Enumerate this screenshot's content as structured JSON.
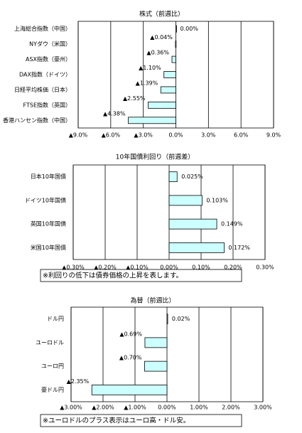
{
  "chart_data": [
    {
      "type": "bar",
      "orientation": "horizontal",
      "title": "株式（前週比）",
      "categories": [
        "上海総合指数（中国）",
        "NYダウ（米国）",
        "ASX指数（豪州）",
        "DAX指数（ドイツ）",
        "日経平均株価（日本）",
        "FTSE指数（英国）",
        "香港ハンセン指数（中国）"
      ],
      "values": [
        0.0,
        -0.04,
        -0.36,
        -1.1,
        -1.39,
        -2.55,
        -4.38
      ],
      "value_labels": [
        "0.00%",
        "▲0.04%",
        "▲0.36%",
        "▲1.10%",
        "▲1.39%",
        "▲2.55%",
        "▲4.38%"
      ],
      "color": "#ccffff",
      "negative_label_color": "#e00000",
      "grid": true,
      "xlim": [
        -9,
        9
      ],
      "xticks": [
        {
          "value": -9,
          "label": "▲9.0%"
        },
        {
          "value": -6,
          "label": "▲6.0%"
        },
        {
          "value": -3,
          "label": "▲3.0%"
        },
        {
          "value": 0,
          "label": "0.0%"
        },
        {
          "value": 3,
          "label": "3.0%"
        },
        {
          "value": 6,
          "label": "6.0%"
        },
        {
          "value": 9,
          "label": "9.0%"
        }
      ]
    },
    {
      "type": "bar",
      "orientation": "horizontal",
      "title": "10年国債利回り（前週差）",
      "categories": [
        "日本10年国債",
        "ドイツ10年国債",
        "英国10年国債",
        "米国10年国債"
      ],
      "values": [
        0.025,
        0.103,
        0.149,
        0.172
      ],
      "value_labels": [
        "0.025%",
        "0.103%",
        "0.149%",
        "0.172%"
      ],
      "color": "#ccffff",
      "negative_label_color": "#e00000",
      "grid": true,
      "xlim": [
        -0.3,
        0.3
      ],
      "xticks": [
        {
          "value": -0.3,
          "label": "▲0.30%"
        },
        {
          "value": -0.2,
          "label": "▲0.20%"
        },
        {
          "value": -0.1,
          "label": "▲0.10%"
        },
        {
          "value": 0,
          "label": "0.00%"
        },
        {
          "value": 0.1,
          "label": "0.10%"
        },
        {
          "value": 0.2,
          "label": "0.20%"
        },
        {
          "value": 0.3,
          "label": "0.30%"
        }
      ],
      "note": "※利回りの低下は債券価格の上昇を表します。"
    },
    {
      "type": "bar",
      "orientation": "horizontal",
      "title": "為替（前週比）",
      "categories": [
        "ドル円",
        "ユーロドル",
        "ユーロ円",
        "豪ドル円"
      ],
      "values": [
        0.02,
        -0.69,
        -0.7,
        -2.35
      ],
      "value_labels": [
        "0.02%",
        "▲0.69%",
        "▲0.70%",
        "▲2.35%"
      ],
      "color": "#ccffff",
      "negative_label_color": "#e00000",
      "grid": true,
      "xlim": [
        -3,
        3
      ],
      "xticks": [
        {
          "value": -3,
          "label": "▲3.00%"
        },
        {
          "value": -2,
          "label": "▲2.00%"
        },
        {
          "value": -1,
          "label": "▲1.00%"
        },
        {
          "value": 0,
          "label": "0.00%"
        },
        {
          "value": 1,
          "label": "1.00%"
        },
        {
          "value": 2,
          "label": "2.00%"
        },
        {
          "value": 3,
          "label": "3.00%"
        }
      ],
      "note": "※ユーロドルのプラス表示はユーロ高・ドル安。"
    }
  ]
}
